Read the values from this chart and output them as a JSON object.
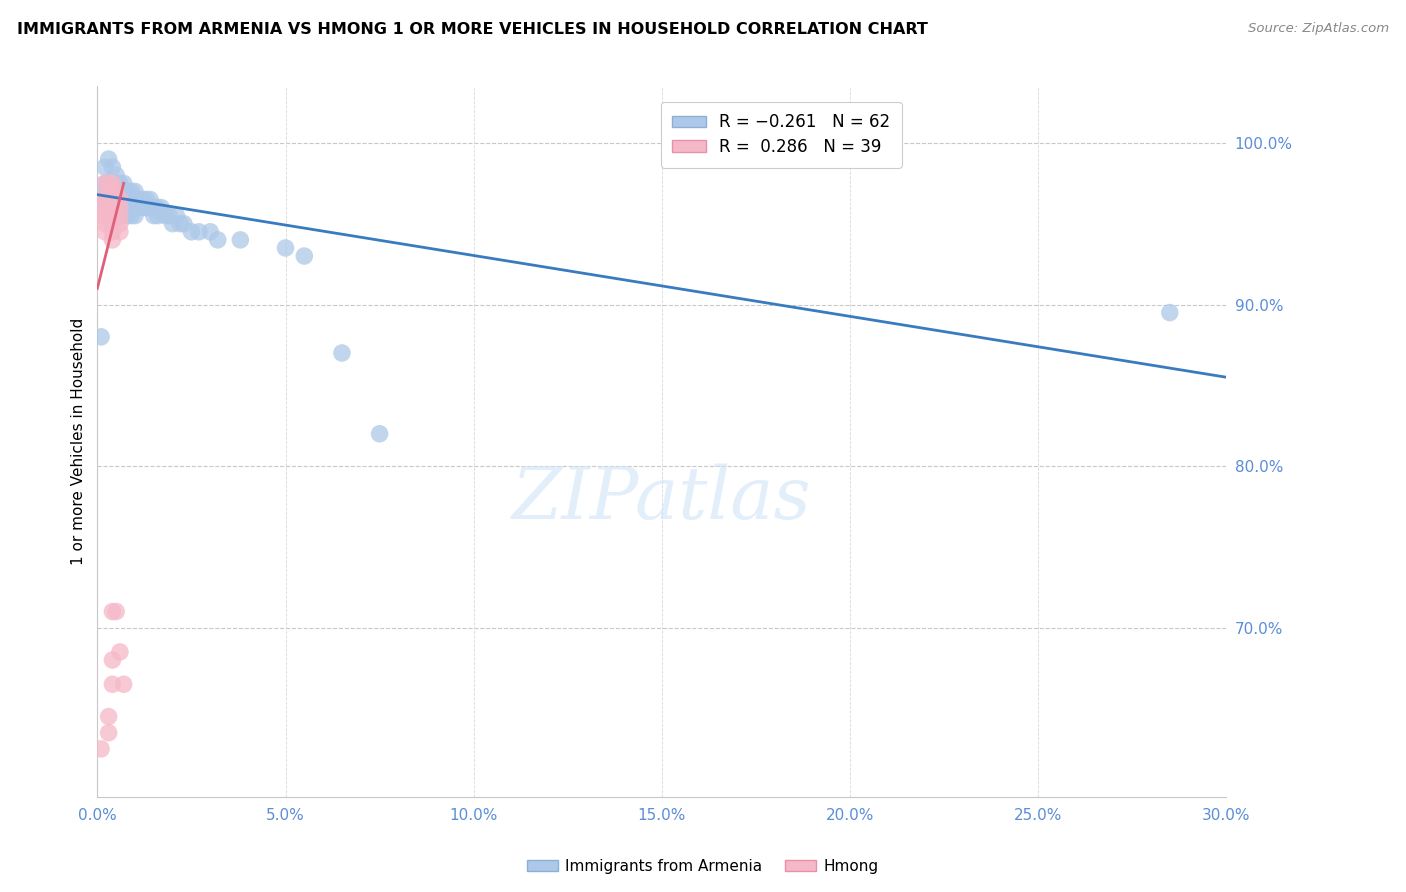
{
  "title": "IMMIGRANTS FROM ARMENIA VS HMONG 1 OR MORE VEHICLES IN HOUSEHOLD CORRELATION CHART",
  "source": "Source: ZipAtlas.com",
  "ylabel": "1 or more Vehicles in Household",
  "xlabel_ticks": [
    "0.0%",
    "5.0%",
    "10.0%",
    "15.0%",
    "20.0%",
    "25.0%",
    "30.0%"
  ],
  "ylabel_ticks_right": [
    "100.0%",
    "90.0%",
    "80.0%",
    "70.0%"
  ],
  "xlim": [
    0.0,
    0.3
  ],
  "ylim": [
    0.595,
    1.035
  ],
  "armenia_color": "#adc8e8",
  "hmong_color": "#f5b8c8",
  "armenia_line_color": "#3a7bbf",
  "hmong_line_color": "#e0607a",
  "watermark_text": "ZIPatlas",
  "armenia_scatter_x": [
    0.001,
    0.002,
    0.002,
    0.002,
    0.003,
    0.003,
    0.003,
    0.004,
    0.004,
    0.004,
    0.004,
    0.005,
    0.005,
    0.005,
    0.005,
    0.005,
    0.006,
    0.006,
    0.006,
    0.006,
    0.007,
    0.007,
    0.007,
    0.007,
    0.008,
    0.008,
    0.008,
    0.009,
    0.009,
    0.009,
    0.01,
    0.01,
    0.01,
    0.011,
    0.011,
    0.012,
    0.012,
    0.013,
    0.013,
    0.014,
    0.014,
    0.015,
    0.015,
    0.016,
    0.016,
    0.017,
    0.018,
    0.019,
    0.02,
    0.021,
    0.022,
    0.023,
    0.025,
    0.027,
    0.03,
    0.032,
    0.038,
    0.05,
    0.055,
    0.065,
    0.075,
    0.285
  ],
  "armenia_scatter_y": [
    0.88,
    0.985,
    0.975,
    0.97,
    0.99,
    0.975,
    0.97,
    0.985,
    0.975,
    0.965,
    0.96,
    0.98,
    0.975,
    0.965,
    0.96,
    0.955,
    0.975,
    0.965,
    0.96,
    0.955,
    0.975,
    0.97,
    0.96,
    0.955,
    0.97,
    0.965,
    0.955,
    0.97,
    0.965,
    0.955,
    0.97,
    0.965,
    0.955,
    0.965,
    0.96,
    0.965,
    0.96,
    0.965,
    0.96,
    0.965,
    0.96,
    0.96,
    0.955,
    0.96,
    0.955,
    0.96,
    0.955,
    0.955,
    0.95,
    0.955,
    0.95,
    0.95,
    0.945,
    0.945,
    0.945,
    0.94,
    0.94,
    0.935,
    0.93,
    0.87,
    0.82,
    0.895
  ],
  "hmong_scatter_x": [
    0.001,
    0.001,
    0.001,
    0.001,
    0.002,
    0.002,
    0.002,
    0.002,
    0.002,
    0.002,
    0.003,
    0.003,
    0.003,
    0.003,
    0.003,
    0.003,
    0.003,
    0.004,
    0.004,
    0.004,
    0.004,
    0.004,
    0.004,
    0.004,
    0.004,
    0.004,
    0.004,
    0.004,
    0.005,
    0.005,
    0.005,
    0.005,
    0.006,
    0.006,
    0.006,
    0.006,
    0.006,
    0.006,
    0.007
  ],
  "hmong_scatter_y": [
    0.965,
    0.96,
    0.955,
    0.625,
    0.975,
    0.965,
    0.96,
    0.955,
    0.95,
    0.945,
    0.975,
    0.97,
    0.965,
    0.96,
    0.955,
    0.645,
    0.635,
    0.975,
    0.97,
    0.965,
    0.96,
    0.955,
    0.95,
    0.945,
    0.94,
    0.71,
    0.68,
    0.665,
    0.97,
    0.965,
    0.955,
    0.71,
    0.965,
    0.96,
    0.955,
    0.95,
    0.945,
    0.685,
    0.665
  ],
  "armenia_line_x": [
    0.0,
    0.3
  ],
  "armenia_line_y": [
    0.968,
    0.855
  ],
  "hmong_line_x": [
    0.0,
    0.007
  ],
  "hmong_line_y": [
    0.91,
    0.975
  ]
}
